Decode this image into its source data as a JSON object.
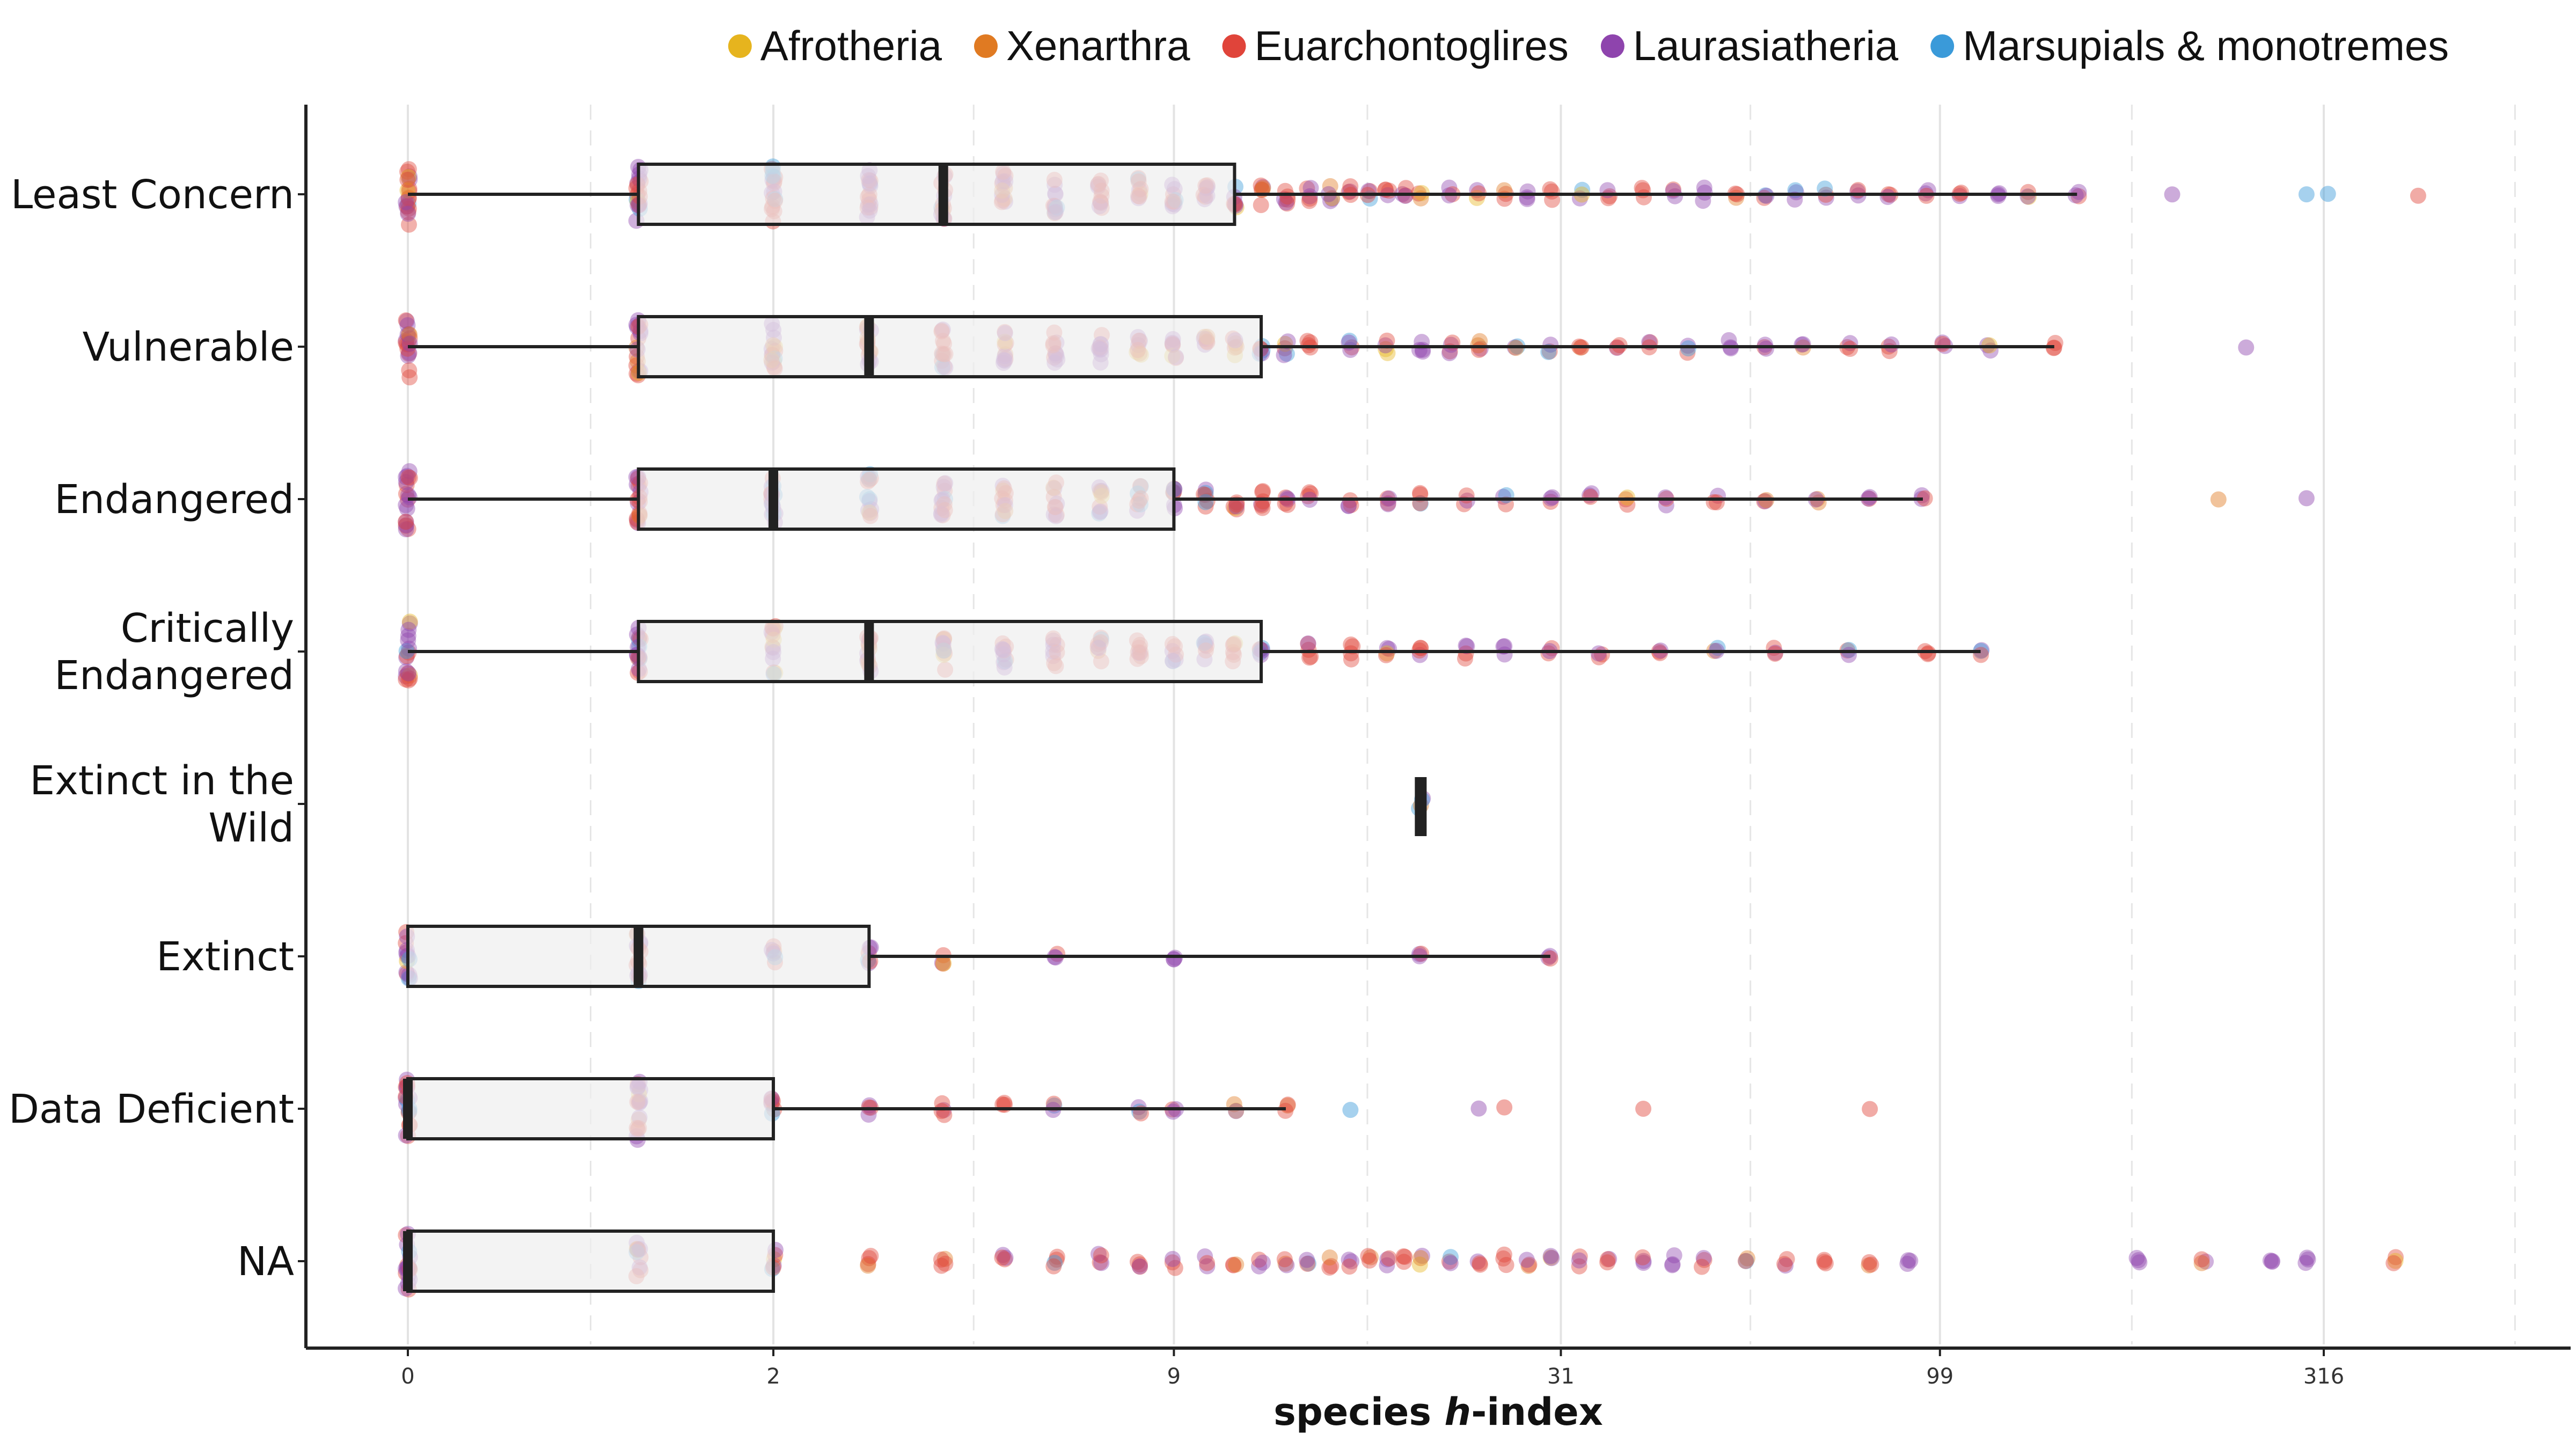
{
  "chart_data": {
    "type": "box-with-jittered-points",
    "orientation": "horizontal",
    "xlabel_bold": "species ",
    "xlabel_italic": "h",
    "xlabel_rest": "-index",
    "x_scale": "log1p",
    "x_ticks": [
      0,
      2,
      9,
      31,
      99,
      316
    ],
    "x_tick_labels": [
      "0",
      "2",
      "9",
      "31",
      "99",
      "316"
    ],
    "xlim": [
      -0.2,
      700
    ],
    "grid": "vertical major solid and minor dashed",
    "legend_position": "top",
    "legend": [
      {
        "name": "Afrotheria",
        "color": "#E6B41E"
      },
      {
        "name": "Xenarthra",
        "color": "#E07A22"
      },
      {
        "name": "Euarchontoglires",
        "color": "#E0443A"
      },
      {
        "name": "Laurasiatheria",
        "color": "#8E44AD"
      },
      {
        "name": "Marsupials & monotremes",
        "color": "#3A9AD9"
      }
    ],
    "categories": [
      "Least Concern",
      "Vulnerable",
      "Endangered",
      "Critically Endangered",
      "Extinct in the Wild",
      "Extinct",
      "Data Deficient",
      "NA"
    ],
    "category_lines": [
      [
        "Least Concern"
      ],
      [
        "Vulnerable"
      ],
      [
        "Endangered"
      ],
      [
        "Critically",
        "Endangered"
      ],
      [
        "Extinct in the",
        "Wild"
      ],
      [
        "Extinct"
      ],
      [
        "Data Deficient"
      ],
      [
        "NA"
      ]
    ],
    "boxes": [
      {
        "category": "Least Concern",
        "min": 0,
        "q1": 1,
        "median": 4,
        "q3": 11,
        "max": 150
      },
      {
        "category": "Vulnerable",
        "min": 0,
        "q1": 1,
        "median": 3,
        "q3": 12,
        "max": 140
      },
      {
        "category": "Endangered",
        "min": 0,
        "q1": 1,
        "median": 2,
        "q3": 9,
        "max": 94
      },
      {
        "category": "Critically Endangered",
        "min": 0,
        "q1": 1,
        "median": 3,
        "q3": 12,
        "max": 112
      },
      {
        "category": "Extinct in the Wild",
        "min": 20,
        "q1": 20,
        "median": 20,
        "q3": 20,
        "max": 20
      },
      {
        "category": "Extinct",
        "min": 0,
        "q1": 0,
        "median": 1,
        "q3": 3,
        "max": 30
      },
      {
        "category": "Data Deficient",
        "min": 0,
        "q1": 0,
        "median": 0,
        "q3": 2,
        "max": 13
      },
      {
        "category": "NA",
        "min": 0,
        "q1": 0,
        "median": 0,
        "q3": 2,
        "max": 2
      }
    ],
    "point_columns": [
      {
        "category": "Least Concern",
        "x": [
          0,
          1,
          2,
          3,
          4,
          5,
          6,
          7,
          8,
          9,
          10,
          11,
          12,
          13,
          14,
          15,
          16,
          17,
          18,
          19,
          20,
          22,
          24,
          26,
          28,
          30,
          33,
          36,
          40,
          44,
          48,
          53,
          58,
          64,
          70,
          77,
          85,
          95,
          105,
          118,
          130,
          150
        ],
        "spread": [
          60,
          60,
          56,
          50,
          46,
          42,
          38,
          34,
          30,
          28,
          26,
          22,
          20,
          18,
          16,
          15,
          14,
          13,
          12,
          12,
          11,
          10,
          10,
          10,
          10,
          10,
          10,
          10,
          10,
          10,
          10,
          10,
          10,
          10,
          10,
          10,
          8,
          8,
          6,
          6,
          6,
          6
        ]
      },
      {
        "category": "Vulnerable",
        "x": [
          0,
          1,
          2,
          3,
          4,
          5,
          6,
          7,
          8,
          9,
          10,
          11,
          12,
          13,
          14,
          16,
          18,
          20,
          22,
          24,
          27,
          30,
          33,
          37,
          41,
          46,
          52,
          58,
          65,
          75,
          85,
          100,
          115,
          140
        ],
        "spread": [
          58,
          56,
          48,
          44,
          40,
          36,
          32,
          28,
          26,
          24,
          22,
          20,
          18,
          16,
          14,
          14,
          12,
          12,
          12,
          12,
          10,
          10,
          10,
          10,
          10,
          10,
          10,
          8,
          8,
          8,
          8,
          8,
          6,
          6
        ]
      },
      {
        "category": "Endangered",
        "x": [
          0,
          1,
          2,
          3,
          4,
          5,
          6,
          7,
          8,
          9,
          10,
          11,
          12,
          13,
          14,
          16,
          18,
          20,
          23,
          26,
          30,
          34,
          38,
          43,
          50,
          58,
          68,
          80,
          94
        ],
        "spread": [
          60,
          56,
          50,
          44,
          40,
          36,
          32,
          28,
          26,
          24,
          22,
          20,
          18,
          16,
          14,
          14,
          12,
          12,
          10,
          10,
          10,
          10,
          10,
          10,
          8,
          8,
          8,
          8,
          6
        ]
      },
      {
        "category": "Critically Endangered",
        "x": [
          0,
          1,
          2,
          3,
          4,
          5,
          6,
          7,
          8,
          9,
          10,
          11,
          12,
          14,
          16,
          18,
          20,
          23,
          26,
          30,
          35,
          42,
          50,
          60,
          75,
          95,
          112
        ],
        "spread": [
          56,
          52,
          46,
          40,
          36,
          32,
          28,
          26,
          24,
          22,
          22,
          20,
          18,
          16,
          14,
          14,
          12,
          12,
          10,
          10,
          10,
          8,
          8,
          8,
          6,
          6,
          6
        ]
      },
      {
        "category": "Extinct in the Wild",
        "x": [
          20
        ],
        "spread": [
          14
        ]
      },
      {
        "category": "Extinct",
        "x": [
          0,
          1,
          2,
          3,
          4,
          6,
          9,
          20,
          30
        ],
        "spread": [
          44,
          48,
          18,
          18,
          14,
          8,
          6,
          4,
          4
        ]
      },
      {
        "category": "Data Deficient",
        "x": [
          0,
          1,
          2,
          3,
          4,
          5,
          6,
          8,
          9,
          11,
          13
        ],
        "spread": [
          62,
          58,
          22,
          14,
          12,
          10,
          8,
          8,
          8,
          6,
          6
        ]
      },
      {
        "category": "NA",
        "x": [
          0,
          1,
          2,
          3,
          4,
          5,
          6,
          7,
          8,
          9,
          10,
          11,
          12,
          13,
          14,
          15,
          16,
          17,
          18,
          19,
          20,
          22,
          24,
          26,
          28,
          30,
          33,
          36,
          40,
          44,
          48,
          55,
          62,
          70,
          80,
          90,
          180,
          220,
          270,
          300,
          390
        ],
        "spread": [
          62,
          36,
          20,
          14,
          12,
          12,
          12,
          12,
          12,
          10,
          10,
          10,
          10,
          10,
          10,
          10,
          10,
          10,
          10,
          10,
          10,
          10,
          10,
          10,
          10,
          10,
          10,
          10,
          10,
          10,
          10,
          8,
          8,
          8,
          8,
          8,
          6,
          6,
          6,
          6,
          6
        ]
      }
    ],
    "outlier_points": [
      {
        "category": "Least Concern",
        "x": [
          200,
          300,
          320,
          420
        ]
      },
      {
        "category": "Vulnerable",
        "x": [
          250
        ]
      },
      {
        "category": "Endangered",
        "x": [
          230,
          300
        ]
      },
      {
        "category": "Data Deficient",
        "x": [
          16,
          24,
          26,
          40,
          80
        ]
      }
    ]
  }
}
